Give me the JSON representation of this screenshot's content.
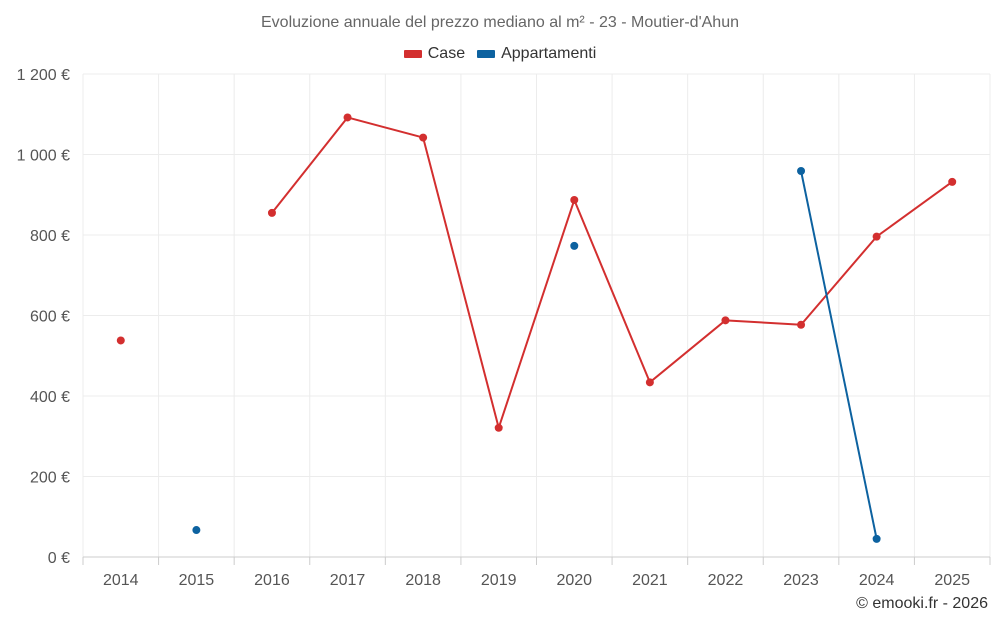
{
  "chart_data": {
    "type": "line",
    "title": "Evoluzione annuale del prezzo mediano al m² - 23 - Moutier-d'Ahun",
    "xlabel": "",
    "ylabel": "",
    "categories": [
      "2014",
      "2015",
      "2016",
      "2017",
      "2018",
      "2019",
      "2020",
      "2021",
      "2022",
      "2023",
      "2024",
      "2025"
    ],
    "ylim": [
      0,
      1200
    ],
    "y_ticks": [
      0,
      200,
      400,
      600,
      800,
      1000,
      1200
    ],
    "y_tick_labels": [
      "0 €",
      "200 €",
      "400 €",
      "600 €",
      "800 €",
      "1 000 €",
      "1 200 €"
    ],
    "grid": true,
    "legend_position": "top-center",
    "series": [
      {
        "name": "Case",
        "color": "#d32f2f",
        "values": [
          538,
          null,
          855,
          1092,
          1042,
          321,
          887,
          434,
          588,
          577,
          796,
          932
        ]
      },
      {
        "name": "Appartamenti",
        "color": "#0d62a0",
        "values": [
          null,
          67,
          null,
          null,
          null,
          null,
          773,
          null,
          null,
          959,
          45,
          null
        ]
      }
    ]
  },
  "credit": "© emooki.fr - 2026"
}
